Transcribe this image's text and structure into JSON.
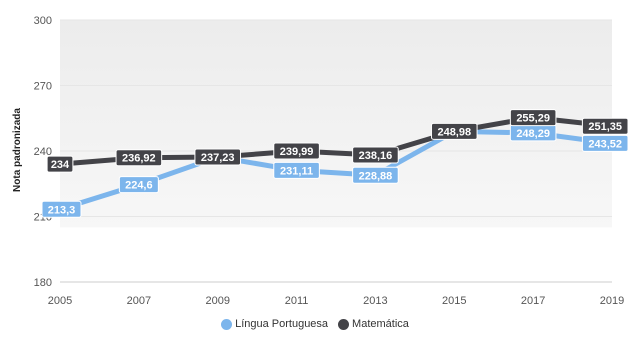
{
  "chart_data": {
    "type": "line",
    "title": "",
    "xlabel": "",
    "ylabel": "Nota padronizada",
    "categories": [
      "2005",
      "2007",
      "2009",
      "2011",
      "2013",
      "2015",
      "2017",
      "2019"
    ],
    "ylim": [
      180,
      300
    ],
    "yticks": [
      180,
      210,
      240,
      270,
      300
    ],
    "grid": true,
    "legend_placement": "bottom",
    "series": [
      {
        "name": "Língua Portuguesa",
        "color": "#7cb5ec",
        "values": [
          213.3,
          224.6,
          237.23,
          231.11,
          228.88,
          248.98,
          248.29,
          243.52
        ],
        "labels": [
          "213,3",
          "224,6",
          "",
          "231,11",
          "228,88",
          "",
          "248,29",
          "243,52"
        ]
      },
      {
        "name": "Matemática",
        "color": "#434348",
        "values": [
          234,
          236.92,
          237.23,
          239.99,
          238.16,
          248.98,
          255.29,
          251.35
        ],
        "labels": [
          "234",
          "236,92",
          "237,23",
          "239,99",
          "238,16",
          "248,98",
          "255,29",
          "251,35"
        ]
      }
    ]
  }
}
